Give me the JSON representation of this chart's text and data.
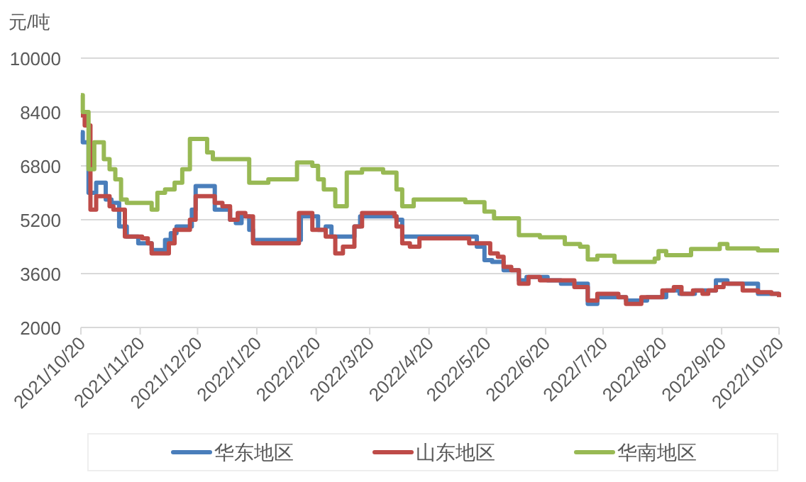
{
  "chart_data": {
    "type": "step",
    "ylabel": "元/吨",
    "xlim": [
      "2021-10-20",
      "2022-10-20"
    ],
    "ylim": [
      2000,
      10000
    ],
    "yticks": [
      2000,
      3600,
      5200,
      6800,
      8400,
      10000
    ],
    "xticks": [
      {
        "value": "2021-10-20",
        "label": "2021/10/20"
      },
      {
        "value": "2021-11-20",
        "label": "2021/11/20"
      },
      {
        "value": "2021-12-20",
        "label": "2021/12/20"
      },
      {
        "value": "2022-01-20",
        "label": "2022/1/20"
      },
      {
        "value": "2022-02-20",
        "label": "2022/2/20"
      },
      {
        "value": "2022-03-20",
        "label": "2022/3/20"
      },
      {
        "value": "2022-04-20",
        "label": "2022/4/20"
      },
      {
        "value": "2022-05-20",
        "label": "2022/5/20"
      },
      {
        "value": "2022-06-20",
        "label": "2022/6/20"
      },
      {
        "value": "2022-07-20",
        "label": "2022/7/20"
      },
      {
        "value": "2022-08-20",
        "label": "2022/8/20"
      },
      {
        "value": "2022-09-20",
        "label": "2022/9/20"
      },
      {
        "value": "2022-10-20",
        "label": "2022/10/20"
      }
    ],
    "grid": "y",
    "legend": "bottom",
    "marker": "none",
    "line_style": "solid",
    "series": [
      {
        "name": "华东地区",
        "color": "#4a7ebb",
        "x": [
          "2021-10-20",
          "2021-10-21",
          "2021-10-24",
          "2021-10-28",
          "2021-10-30",
          "2021-11-02",
          "2021-11-05",
          "2021-11-09",
          "2021-11-13",
          "2021-11-19",
          "2021-11-24",
          "2021-11-26",
          "2021-11-29",
          "2021-12-03",
          "2021-12-06",
          "2021-12-09",
          "2021-12-14",
          "2021-12-17",
          "2021-12-19",
          "2021-12-25",
          "2021-12-29",
          "2022-01-02",
          "2022-01-06",
          "2022-01-09",
          "2022-01-12",
          "2022-01-16",
          "2022-01-18",
          "2022-02-06",
          "2022-02-12",
          "2022-02-18",
          "2022-02-21",
          "2022-02-25",
          "2022-02-28",
          "2022-03-07",
          "2022-03-12",
          "2022-03-15",
          "2022-04-01",
          "2022-04-03",
          "2022-04-06",
          "2022-04-12",
          "2022-05-15",
          "2022-05-19",
          "2022-05-23",
          "2022-05-29",
          "2022-06-06",
          "2022-06-10",
          "2022-06-21",
          "2022-06-28",
          "2022-07-12",
          "2022-07-17",
          "2022-08-01",
          "2022-08-12",
          "2022-08-22",
          "2022-08-29",
          "2022-09-06",
          "2022-09-17",
          "2022-09-23",
          "2022-10-09",
          "2022-10-20"
        ],
        "values": [
          7800,
          7500,
          6000,
          6300,
          6300,
          5800,
          5700,
          5000,
          4700,
          4500,
          4500,
          4300,
          4300,
          4600,
          4800,
          5000,
          5000,
          5500,
          6200,
          6200,
          5500,
          5500,
          5200,
          5100,
          5300,
          4900,
          4600,
          4600,
          5300,
          5300,
          4900,
          5000,
          4700,
          4700,
          5000,
          5300,
          5300,
          5200,
          4700,
          4700,
          4400,
          4000,
          3950,
          3700,
          3400,
          3500,
          3400,
          3300,
          2700,
          2900,
          2800,
          2900,
          3100,
          3000,
          3100,
          3400,
          3300,
          3000,
          3000
        ]
      },
      {
        "name": "山东地区",
        "color": "#be4b48",
        "x": [
          "2021-10-20",
          "2021-10-22",
          "2021-10-25",
          "2021-10-28",
          "2021-11-04",
          "2021-11-06",
          "2021-11-12",
          "2021-11-21",
          "2021-11-24",
          "2021-11-26",
          "2021-12-05",
          "2021-12-08",
          "2021-12-16",
          "2021-12-19",
          "2021-12-29",
          "2022-01-02",
          "2022-01-06",
          "2022-01-10",
          "2022-01-14",
          "2022-01-18",
          "2022-02-11",
          "2022-02-18",
          "2022-02-25",
          "2022-03-02",
          "2022-03-06",
          "2022-03-12",
          "2022-03-16",
          "2022-04-02",
          "2022-04-03",
          "2022-04-06",
          "2022-04-10",
          "2022-04-15",
          "2022-05-11",
          "2022-05-22",
          "2022-05-26",
          "2022-05-29",
          "2022-06-02",
          "2022-06-06",
          "2022-06-11",
          "2022-06-17",
          "2022-07-05",
          "2022-07-12",
          "2022-07-17",
          "2022-07-28",
          "2022-08-01",
          "2022-08-09",
          "2022-08-20",
          "2022-08-26",
          "2022-08-30",
          "2022-09-05",
          "2022-09-10",
          "2022-09-13",
          "2022-09-17",
          "2022-09-21",
          "2022-10-01",
          "2022-10-09",
          "2022-10-16",
          "2022-10-20"
        ],
        "values": [
          8300,
          8000,
          5500,
          5900,
          5600,
          5500,
          4700,
          4650,
          4500,
          4200,
          4500,
          4900,
          5200,
          5900,
          5700,
          5600,
          5200,
          5400,
          5300,
          4500,
          5400,
          4900,
          4700,
          4200,
          4400,
          5000,
          5400,
          5300,
          5000,
          4500,
          4400,
          4650,
          4500,
          4200,
          4100,
          3800,
          3700,
          3300,
          3500,
          3400,
          3200,
          2800,
          3000,
          2900,
          2700,
          2900,
          3100,
          3200,
          3000,
          3100,
          3000,
          3100,
          3200,
          3300,
          3100,
          3050,
          3000,
          2900
        ]
      },
      {
        "name": "华南地区",
        "color": "#98b954",
        "x": [
          "2021-10-20",
          "2021-10-21",
          "2021-10-24",
          "2021-10-27",
          "2021-11-01",
          "2021-11-04",
          "2021-11-07",
          "2021-11-10",
          "2021-11-13",
          "2021-11-26",
          "2021-11-29",
          "2021-12-03",
          "2021-12-08",
          "2021-12-12",
          "2021-12-16",
          "2021-12-25",
          "2021-12-28",
          "2022-01-16",
          "2022-01-26",
          "2022-02-10",
          "2022-02-18",
          "2022-02-21",
          "2022-02-24",
          "2022-03-02",
          "2022-03-08",
          "2022-03-16",
          "2022-03-27",
          "2022-04-03",
          "2022-04-06",
          "2022-04-12",
          "2022-05-09",
          "2022-05-19",
          "2022-05-24",
          "2022-06-06",
          "2022-06-17",
          "2022-06-30",
          "2022-07-08",
          "2022-07-12",
          "2022-07-17",
          "2022-07-26",
          "2022-08-16",
          "2022-08-18",
          "2022-08-22",
          "2022-09-04",
          "2022-09-19",
          "2022-09-23",
          "2022-10-09",
          "2022-10-20"
        ],
        "values": [
          8900,
          8400,
          6700,
          7500,
          7000,
          6700,
          6400,
          5800,
          5700,
          5500,
          6000,
          6100,
          6300,
          6700,
          7600,
          7200,
          7000,
          6300,
          6400,
          6900,
          6800,
          6400,
          6100,
          5600,
          6600,
          6700,
          6600,
          6100,
          5600,
          5800,
          5720,
          5440,
          5240,
          4740,
          4680,
          4480,
          4400,
          4020,
          4130,
          3950,
          4050,
          4270,
          4150,
          4330,
          4480,
          4350,
          4290,
          4290
        ]
      }
    ]
  }
}
